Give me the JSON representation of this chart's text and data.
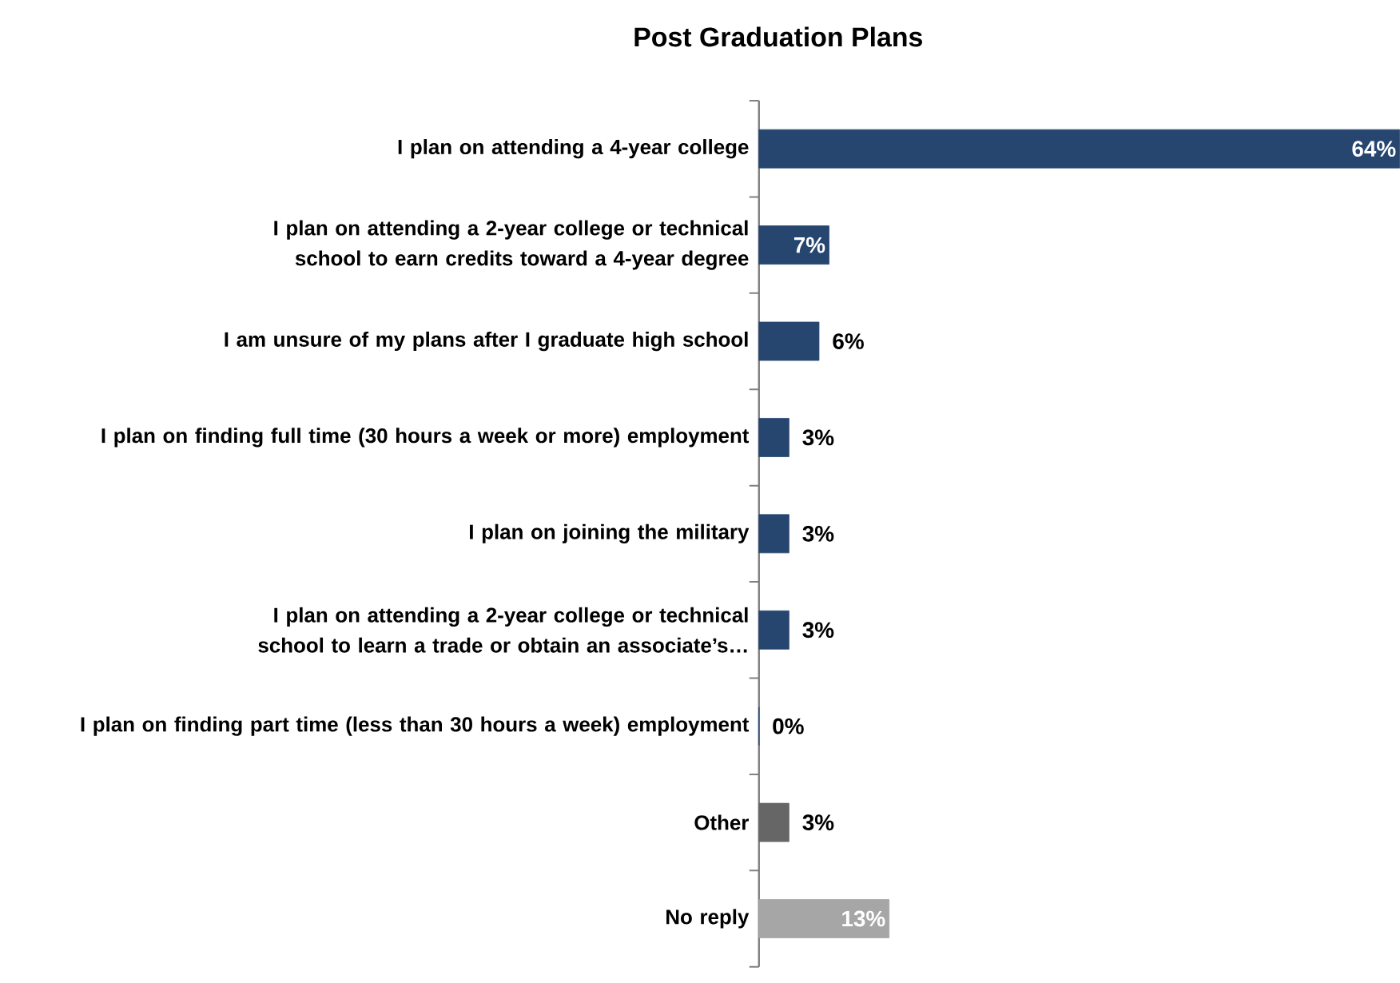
{
  "chart_data": {
    "type": "bar",
    "orientation": "horizontal",
    "title": "Post Graduation Plans",
    "categories": [
      "I plan on attending a 4-year college",
      "I plan on attending a 2-year college or technical school to earn credits toward a 4-year degree",
      "I am unsure of my plans after I graduate high school",
      "I plan on finding full time (30 hours a week or more) employment",
      "I plan on joining the military",
      "I plan on attending a 2-year college or technical school to learn a trade or obtain an associate’s…",
      "I plan on finding part time (less than 30 hours a week) employment",
      "Other",
      "No reply"
    ],
    "values": [
      64,
      7,
      6,
      3,
      3,
      3,
      0,
      3,
      13
    ],
    "value_labels": [
      "64%",
      "7%",
      "6%",
      "3%",
      "3%",
      "3%",
      "0%",
      "3%",
      "13%"
    ],
    "colors": [
      "#264670",
      "#264670",
      "#264670",
      "#264670",
      "#264670",
      "#264670",
      "#264670",
      "#666666",
      "#a6a6a6"
    ]
  }
}
